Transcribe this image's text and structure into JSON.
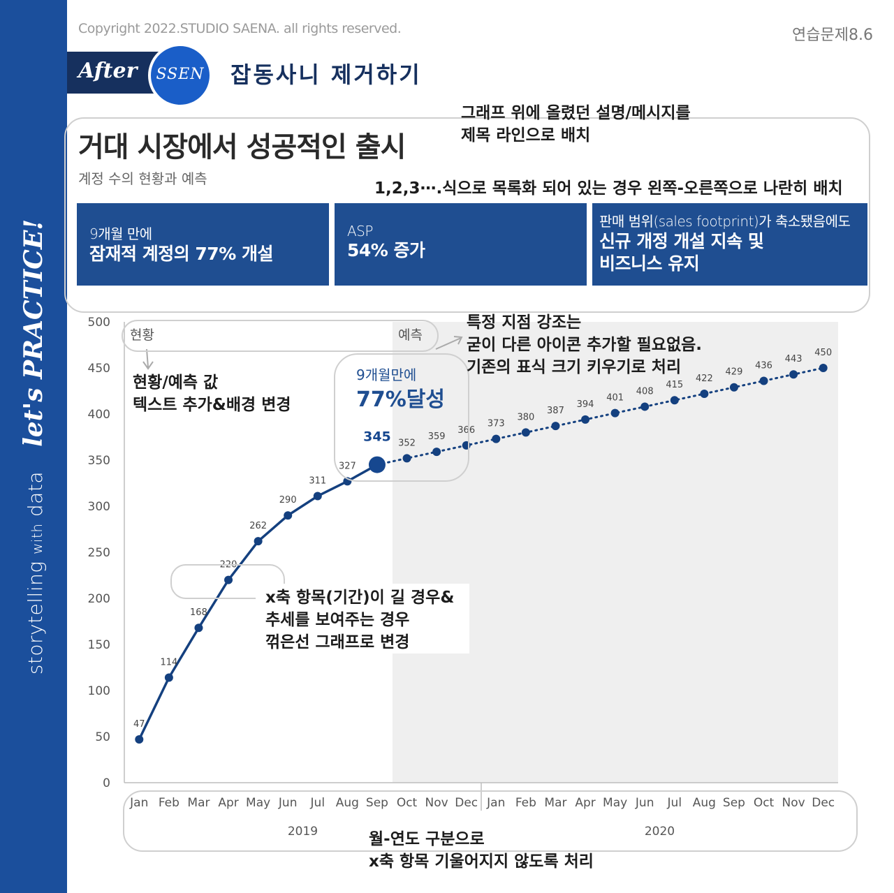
{
  "copyright": "Copyright 2022.STUDIO SAENA. all rights reserved.",
  "exercise_label": "연습문제8.6",
  "sidebar": {
    "storytelling": "storytelling",
    "with": "with",
    "data": "data",
    "lets_practice": "let's PRACTICE!"
  },
  "badge": {
    "after": "After",
    "ssen": "SSEN"
  },
  "section_subtitle": "잡동사니 제거하기",
  "title": "거대 시장에서 성공적인 출시",
  "subtitle": "계정 수의 현황과 예측",
  "notes": {
    "title_note_1": "그래프 위에 올렸던 설명/메시지를",
    "title_note_2": "제목 라인으로 배치",
    "list_note": "1,2,3⋯.식으로 목록화 되어 있는 경우 왼쪽-오른쪽으로 나란히 배치",
    "highlight_note_1": "특정 지점 강조는",
    "highlight_note_2": "굳이 다른 아이콘 추가할 필요없음.",
    "highlight_note_3": "기존의 표식 크기 키우기로 처리",
    "label_note_1": "현황/예측 값",
    "label_note_2": "텍스트 추가&배경 변경",
    "line_note_1": "x축 항목(기간)이 길 경우&",
    "line_note_2": "추세를 보여주는 경우",
    "line_note_3": "꺾은선 그래프로 변경",
    "axis_note_1": "월-연도 구분으로",
    "axis_note_2": "x축 항목 기울어지지 않도록 처리"
  },
  "boxes": [
    {
      "line1": "9개월 만에",
      "line2": "잠재적 계정의 77% 개설",
      "line3": ""
    },
    {
      "line1": "ASP",
      "line2": "54% 증가",
      "line3": ""
    },
    {
      "line1": "판매 범위(sales footprint)가 축소됐음에도",
      "line2": "신규 개정 개설 지속 및",
      "line3": "비즈니스 유지"
    }
  ],
  "colors": {
    "navy": "#1f4e91",
    "sidebar": "#1b4f9c",
    "forecast_bg": "#efefef",
    "line": "#14407f"
  },
  "chart_data": {
    "type": "line",
    "categories": [
      "Jan",
      "Feb",
      "Mar",
      "Apr",
      "May",
      "Jun",
      "Jul",
      "Aug",
      "Sep",
      "Oct",
      "Nov",
      "Dec",
      "Jan",
      "Feb",
      "Mar",
      "Apr",
      "May",
      "Jun",
      "Jul",
      "Aug",
      "Sep",
      "Oct",
      "Nov",
      "Dec"
    ],
    "years": [
      {
        "label": "2019",
        "months": 12
      },
      {
        "label": "2020",
        "months": 12
      }
    ],
    "values": [
      47,
      114,
      168,
      220,
      262,
      290,
      311,
      327,
      345,
      352,
      359,
      366,
      373,
      380,
      387,
      394,
      401,
      408,
      415,
      422,
      429,
      436,
      443,
      450
    ],
    "actual_count": 9,
    "highlight_index": 8,
    "highlight_label": "345",
    "highlight_annotation": {
      "line1": "9개월만에",
      "line2": "77%달성"
    },
    "region_labels": {
      "actual": "현황",
      "forecast": "예측"
    },
    "yticks": [
      0,
      50,
      100,
      150,
      200,
      250,
      300,
      350,
      400,
      450,
      500
    ],
    "ylim": [
      0,
      500
    ],
    "grid": false,
    "forecast_shaded": true
  }
}
